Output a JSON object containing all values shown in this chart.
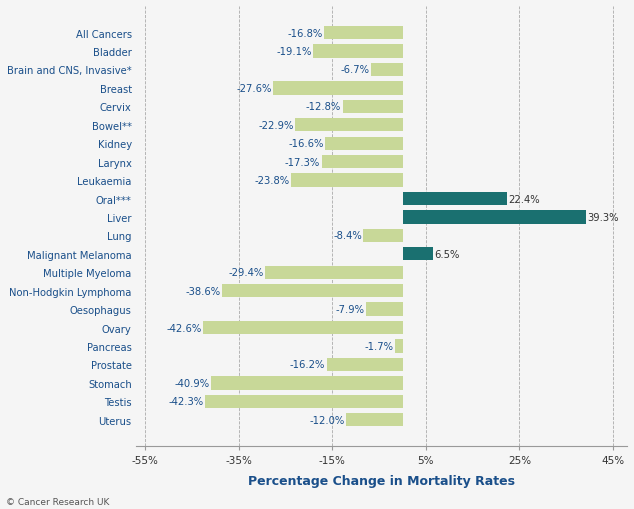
{
  "categories": [
    "All Cancers",
    "Bladder",
    "Brain and CNS, Invasive*",
    "Breast",
    "Cervix",
    "Bowel**",
    "Kidney",
    "Larynx",
    "Leukaemia",
    "Oral***",
    "Liver",
    "Lung",
    "Malignant Melanoma",
    "Multiple Myeloma",
    "Non-Hodgkin Lymphoma",
    "Oesophagus",
    "Ovary",
    "Pancreas",
    "Prostate",
    "Stomach",
    "Testis",
    "Uterus"
  ],
  "values": [
    -16.8,
    -19.1,
    -6.7,
    -27.6,
    -12.8,
    -22.9,
    -16.6,
    -17.3,
    -23.8,
    22.4,
    39.3,
    -8.4,
    6.5,
    -29.4,
    -38.6,
    -7.9,
    -42.6,
    -1.7,
    -16.2,
    -40.9,
    -42.3,
    -12.0
  ],
  "positive_color": "#1a7070",
  "negative_color": "#c8d898",
  "category_label_color": "#1a4f8a",
  "value_label_color_negative": "#1a4f8a",
  "value_label_color_positive": "#333333",
  "xlabel": "Percentage Change in Mortality Rates",
  "xlim": [
    -57,
    48
  ],
  "xticks": [
    -55,
    -35,
    -15,
    5,
    25,
    45
  ],
  "xtick_labels": [
    "-55%",
    "-35%",
    "-15%",
    "5%",
    "25%",
    "45%"
  ],
  "grid_color": "#aaaaaa",
  "background_color": "#f5f5f5",
  "bar_height": 0.72,
  "figsize": [
    6.34,
    5.1
  ],
  "dpi": 100,
  "font_size_cat_labels": 7.2,
  "font_size_values": 7.2,
  "font_size_xlabel": 9.0,
  "font_size_xticks": 7.5,
  "watermark": "© Cancer Research UK"
}
